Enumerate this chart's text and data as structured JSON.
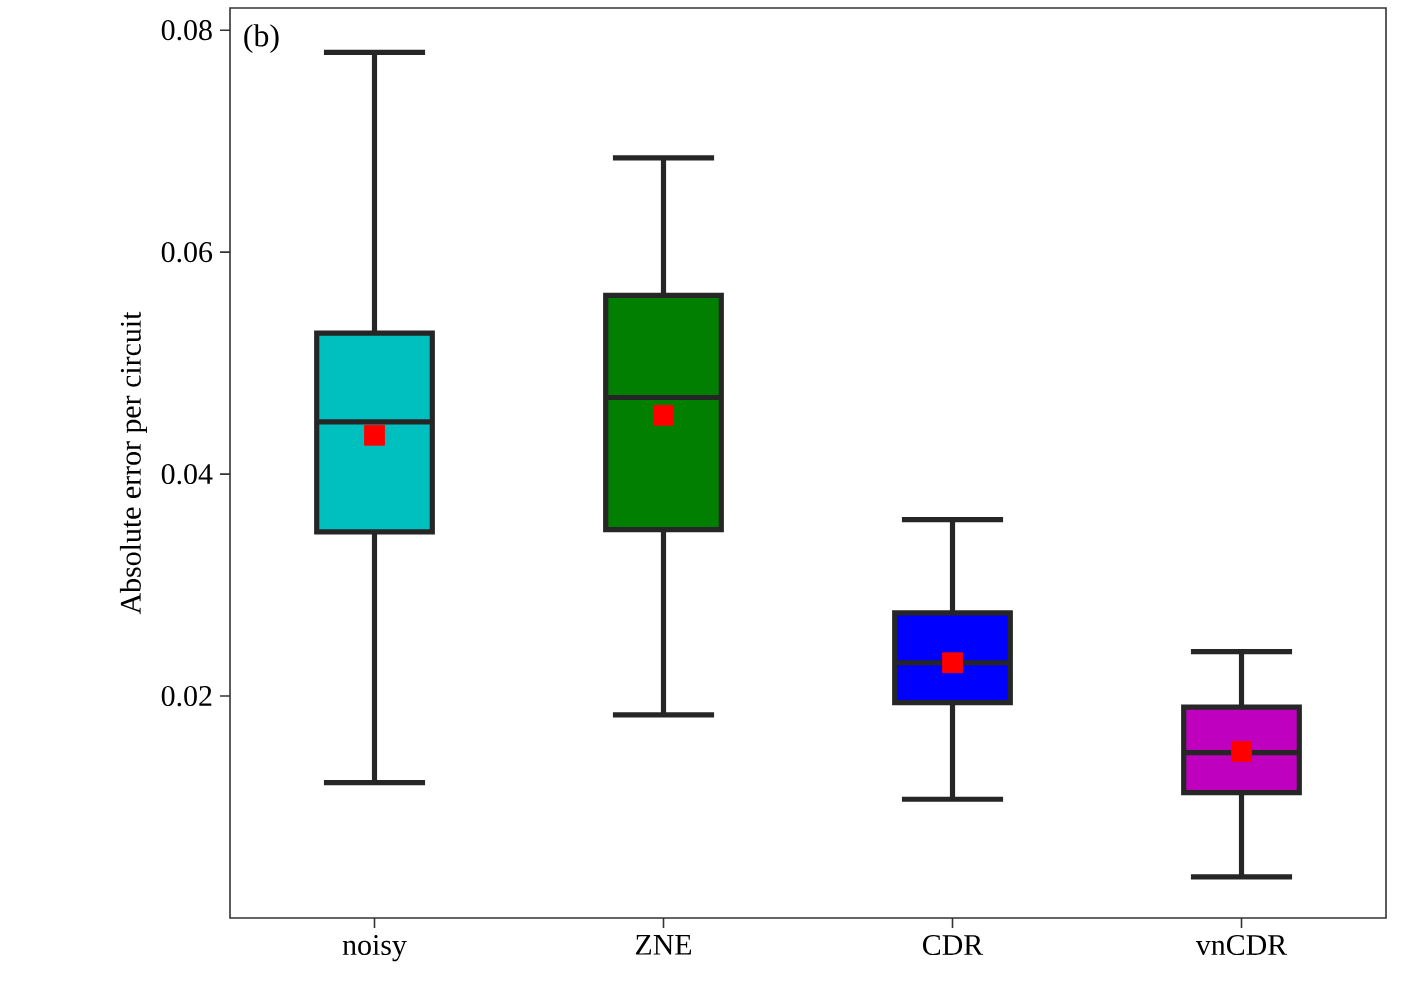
{
  "chart_data": {
    "type": "box",
    "ylabel": "Absolute error per circuit",
    "annotations": [
      "(b)"
    ],
    "categories": [
      "noisy",
      "ZNE",
      "CDR",
      "vnCDR"
    ],
    "colors": [
      "#00bfbf",
      "#007f00",
      "#0000ff",
      "#bf00bf"
    ],
    "boxes": [
      {
        "low": 0.0122,
        "q1": 0.0348,
        "median": 0.0447,
        "q3": 0.0527,
        "high": 0.078,
        "mean": 0.0435
      },
      {
        "low": 0.0183,
        "q1": 0.035,
        "median": 0.0469,
        "q3": 0.0561,
        "high": 0.0685,
        "mean": 0.0453
      },
      {
        "low": 0.0107,
        "q1": 0.0194,
        "median": 0.023,
        "q3": 0.0275,
        "high": 0.0359,
        "mean": 0.023
      },
      {
        "low": 0.0037,
        "q1": 0.0113,
        "median": 0.0149,
        "q3": 0.019,
        "high": 0.024,
        "mean": 0.015
      }
    ],
    "marker": "square",
    "ylim": [
      0,
      0.082
    ],
    "yticks": [
      0.02,
      0.04,
      0.06,
      0.08
    ]
  }
}
